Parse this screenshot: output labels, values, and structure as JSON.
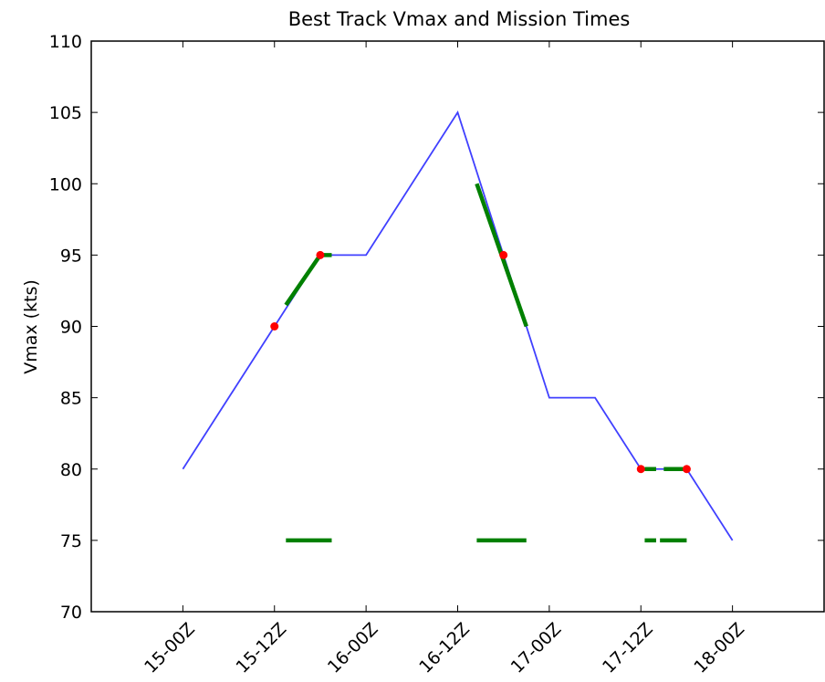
{
  "chart_data": {
    "type": "line",
    "title": "Best Track Vmax and Mission Times",
    "ylabel": "Vmax (kts)",
    "xlim": [
      -12,
      84
    ],
    "ylim": [
      70,
      110
    ],
    "yticks": [
      70,
      75,
      80,
      85,
      90,
      95,
      100,
      105,
      110
    ],
    "xticks": [
      {
        "value": 0,
        "label": "15-00Z"
      },
      {
        "value": 12,
        "label": "15-12Z"
      },
      {
        "value": 24,
        "label": "16-00Z"
      },
      {
        "value": 36,
        "label": "16-12Z"
      },
      {
        "value": 48,
        "label": "17-00Z"
      },
      {
        "value": 60,
        "label": "17-12Z"
      },
      {
        "value": 72,
        "label": "18-00Z"
      }
    ],
    "series": [
      {
        "color": "#4040ff",
        "x": [
          0,
          12,
          18,
          24,
          36,
          48,
          54,
          60,
          66,
          72
        ],
        "values": [
          80,
          90,
          95,
          95,
          105,
          85,
          85,
          80,
          80,
          75
        ]
      }
    ],
    "points": {
      "color": "#ff0000",
      "x": [
        12,
        18,
        42,
        60,
        66
      ],
      "values": [
        90,
        95,
        95,
        80,
        80
      ]
    },
    "segments": {
      "color": "#008000",
      "items": [
        {
          "x": [
            13.5,
            18,
            19.5
          ],
          "values": [
            91.5,
            95,
            95
          ]
        },
        {
          "x": [
            38.5,
            45
          ],
          "values": [
            100,
            90
          ]
        },
        {
          "x": [
            60.5,
            62
          ],
          "values": [
            80,
            80
          ]
        },
        {
          "x": [
            63,
            66
          ],
          "values": [
            80,
            80
          ]
        },
        {
          "x": [
            13.5,
            19.5
          ],
          "values": [
            75,
            75
          ]
        },
        {
          "x": [
            38.5,
            45
          ],
          "values": [
            75,
            75
          ]
        },
        {
          "x": [
            60.5,
            62
          ],
          "values": [
            75,
            75
          ]
        },
        {
          "x": [
            62.5,
            66
          ],
          "values": [
            75,
            75
          ]
        }
      ]
    }
  }
}
